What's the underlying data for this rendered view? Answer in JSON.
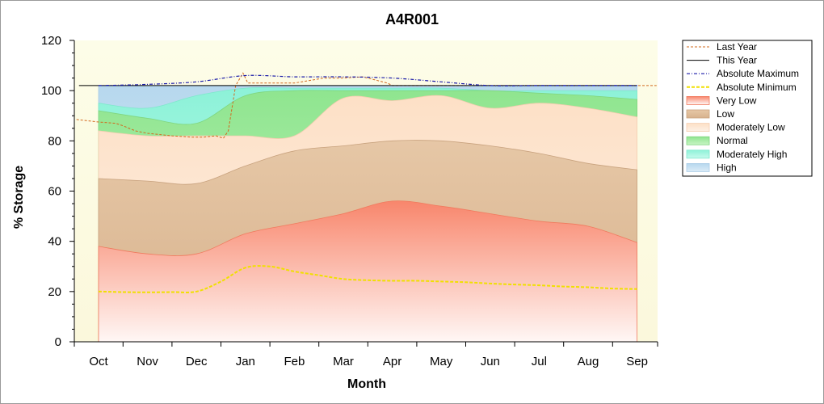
{
  "chart_data": {
    "type": "area",
    "title": "A4R001",
    "xlabel": "Month",
    "ylabel": "% Storage",
    "ylim": [
      0,
      120
    ],
    "yticks": [
      0,
      20,
      40,
      60,
      80,
      100,
      120
    ],
    "categories": [
      "Oct",
      "Nov",
      "Dec",
      "Jan",
      "Feb",
      "Mar",
      "Apr",
      "May",
      "Jun",
      "Jul",
      "Aug",
      "Sep"
    ],
    "legend_position": "right",
    "grid": false,
    "bands": [
      {
        "name": "Very Low",
        "color": "#f8866c",
        "upper": [
          38,
          35,
          35,
          43,
          47,
          51,
          56,
          54,
          51,
          48,
          46,
          39.5
        ]
      },
      {
        "name": "Low",
        "color": "#d9b895",
        "upper": [
          65,
          64,
          63,
          70,
          76,
          78,
          80,
          80,
          78,
          75,
          71,
          68.5
        ]
      },
      {
        "name": "Moderately Low",
        "color": "#fde0cb",
        "upper": [
          84,
          82,
          82,
          82,
          82,
          97,
          96,
          98,
          93,
          95,
          93,
          89.5
        ]
      },
      {
        "name": "Normal",
        "color": "#9ee8a0",
        "upper": [
          92,
          89,
          87,
          98,
          100,
          100,
          100,
          100,
          100,
          99,
          98,
          96.5
        ]
      },
      {
        "name": "Moderately High",
        "color": "#a8f4e0",
        "upper": [
          95,
          93,
          98,
          101,
          101,
          101,
          101,
          101,
          100,
          100,
          100,
          100
        ]
      },
      {
        "name": "High",
        "color": "#c6e0f2",
        "upper": [
          102,
          102,
          102,
          102,
          102,
          102,
          102,
          102,
          102,
          102,
          102,
          102
        ]
      }
    ],
    "series": [
      {
        "name": "Last Year",
        "color": "#d2691e",
        "style": "dashed",
        "x": [
          -0.45,
          0,
          0.35,
          0.5,
          0.75,
          1.0,
          1.5,
          1.9,
          2.15,
          2.4,
          2.55,
          2.65,
          2.8,
          2.95,
          3.05,
          3.3,
          3.6,
          3.9,
          4.0,
          4.3,
          4.6,
          5.0,
          5.4,
          5.7,
          5.9,
          6.0,
          6.3,
          7.0,
          11.4
        ],
        "y": [
          88.5,
          87.5,
          87,
          86,
          84,
          83,
          82,
          81.5,
          81.5,
          82,
          81,
          84,
          102,
          107,
          103,
          103,
          103,
          103,
          103,
          104,
          105,
          105,
          105.5,
          104,
          103,
          102,
          102,
          102,
          102
        ]
      },
      {
        "name": "This Year",
        "color": "#000000",
        "style": "solid",
        "x": [
          -0.4,
          11.0
        ],
        "y": [
          102,
          102
        ]
      },
      {
        "name": "Absolute Maximum",
        "color": "#1a1aa8",
        "style": "dashdot",
        "x": [
          0,
          1,
          2,
          3,
          4,
          5,
          6,
          7,
          8,
          9,
          10,
          11
        ],
        "y": [
          102,
          102.5,
          103.5,
          106,
          105.5,
          105.5,
          105,
          103.5,
          102,
          102,
          102,
          102
        ]
      },
      {
        "name": "Absolute Minimum",
        "color": "#f0e000",
        "style": "dashed-thick",
        "x": [
          0,
          0.5,
          1,
          1.5,
          2,
          2.5,
          3,
          3.5,
          4,
          4.5,
          5,
          5.5,
          6,
          6.5,
          7,
          7.5,
          8,
          8.5,
          9,
          9.5,
          10,
          10.5,
          11
        ],
        "y": [
          20,
          19.8,
          19.7,
          19.8,
          20,
          24,
          29.5,
          30,
          28,
          26.5,
          25,
          24.5,
          24.3,
          24.3,
          24,
          23.7,
          23.2,
          22.8,
          22.5,
          22,
          21.7,
          21.2,
          21
        ]
      }
    ],
    "legend": [
      "Last Year",
      "This Year",
      "Absolute Maximum",
      "Absolute Minimum",
      "Very Low",
      "Low",
      "Moderately Low",
      "Normal",
      "Moderately High",
      "High"
    ]
  }
}
